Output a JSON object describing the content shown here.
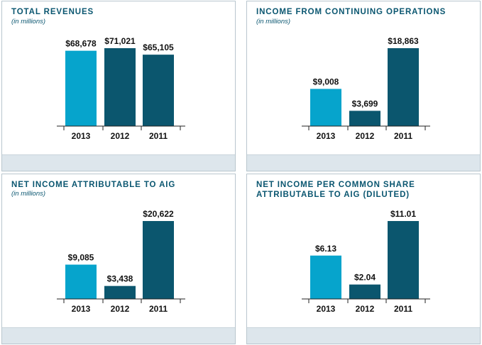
{
  "colors": {
    "current": "#06a4cc",
    "prior": "#0b566e",
    "axis": "#222222"
  },
  "chart_data": [
    {
      "type": "bar",
      "title": "TOTAL REVENUES",
      "subtitle": "(in millions)",
      "categories": [
        "2013",
        "2012",
        "2011"
      ],
      "values": [
        68678,
        71021,
        65105
      ],
      "value_labels": [
        "$68,678",
        "$71,021",
        "$65,105"
      ],
      "ylim": [
        0,
        71021
      ]
    },
    {
      "type": "bar",
      "title": "INCOME FROM CONTINUING OPERATIONS",
      "subtitle": "(in millions)",
      "categories": [
        "2013",
        "2012",
        "2011"
      ],
      "values": [
        9008,
        3699,
        18863
      ],
      "value_labels": [
        "$9,008",
        "$3,699",
        "$18,863"
      ],
      "ylim": [
        0,
        18863
      ]
    },
    {
      "type": "bar",
      "title": "NET INCOME ATTRIBUTABLE TO AIG",
      "subtitle": "(in millions)",
      "categories": [
        "2013",
        "2012",
        "2011"
      ],
      "values": [
        9085,
        3438,
        20622
      ],
      "value_labels": [
        "$9,085",
        "$3,438",
        "$20,622"
      ],
      "ylim": [
        0,
        20622
      ]
    },
    {
      "type": "bar",
      "title": "NET INCOME PER COMMON SHARE ATTRIBUTABLE TO AIG (DILUTED)",
      "subtitle": "",
      "categories": [
        "2013",
        "2012",
        "2011"
      ],
      "values": [
        6.13,
        2.04,
        11.01
      ],
      "value_labels": [
        "$6.13",
        "$2.04",
        "$11.01"
      ],
      "ylim": [
        0,
        11.01
      ]
    }
  ]
}
